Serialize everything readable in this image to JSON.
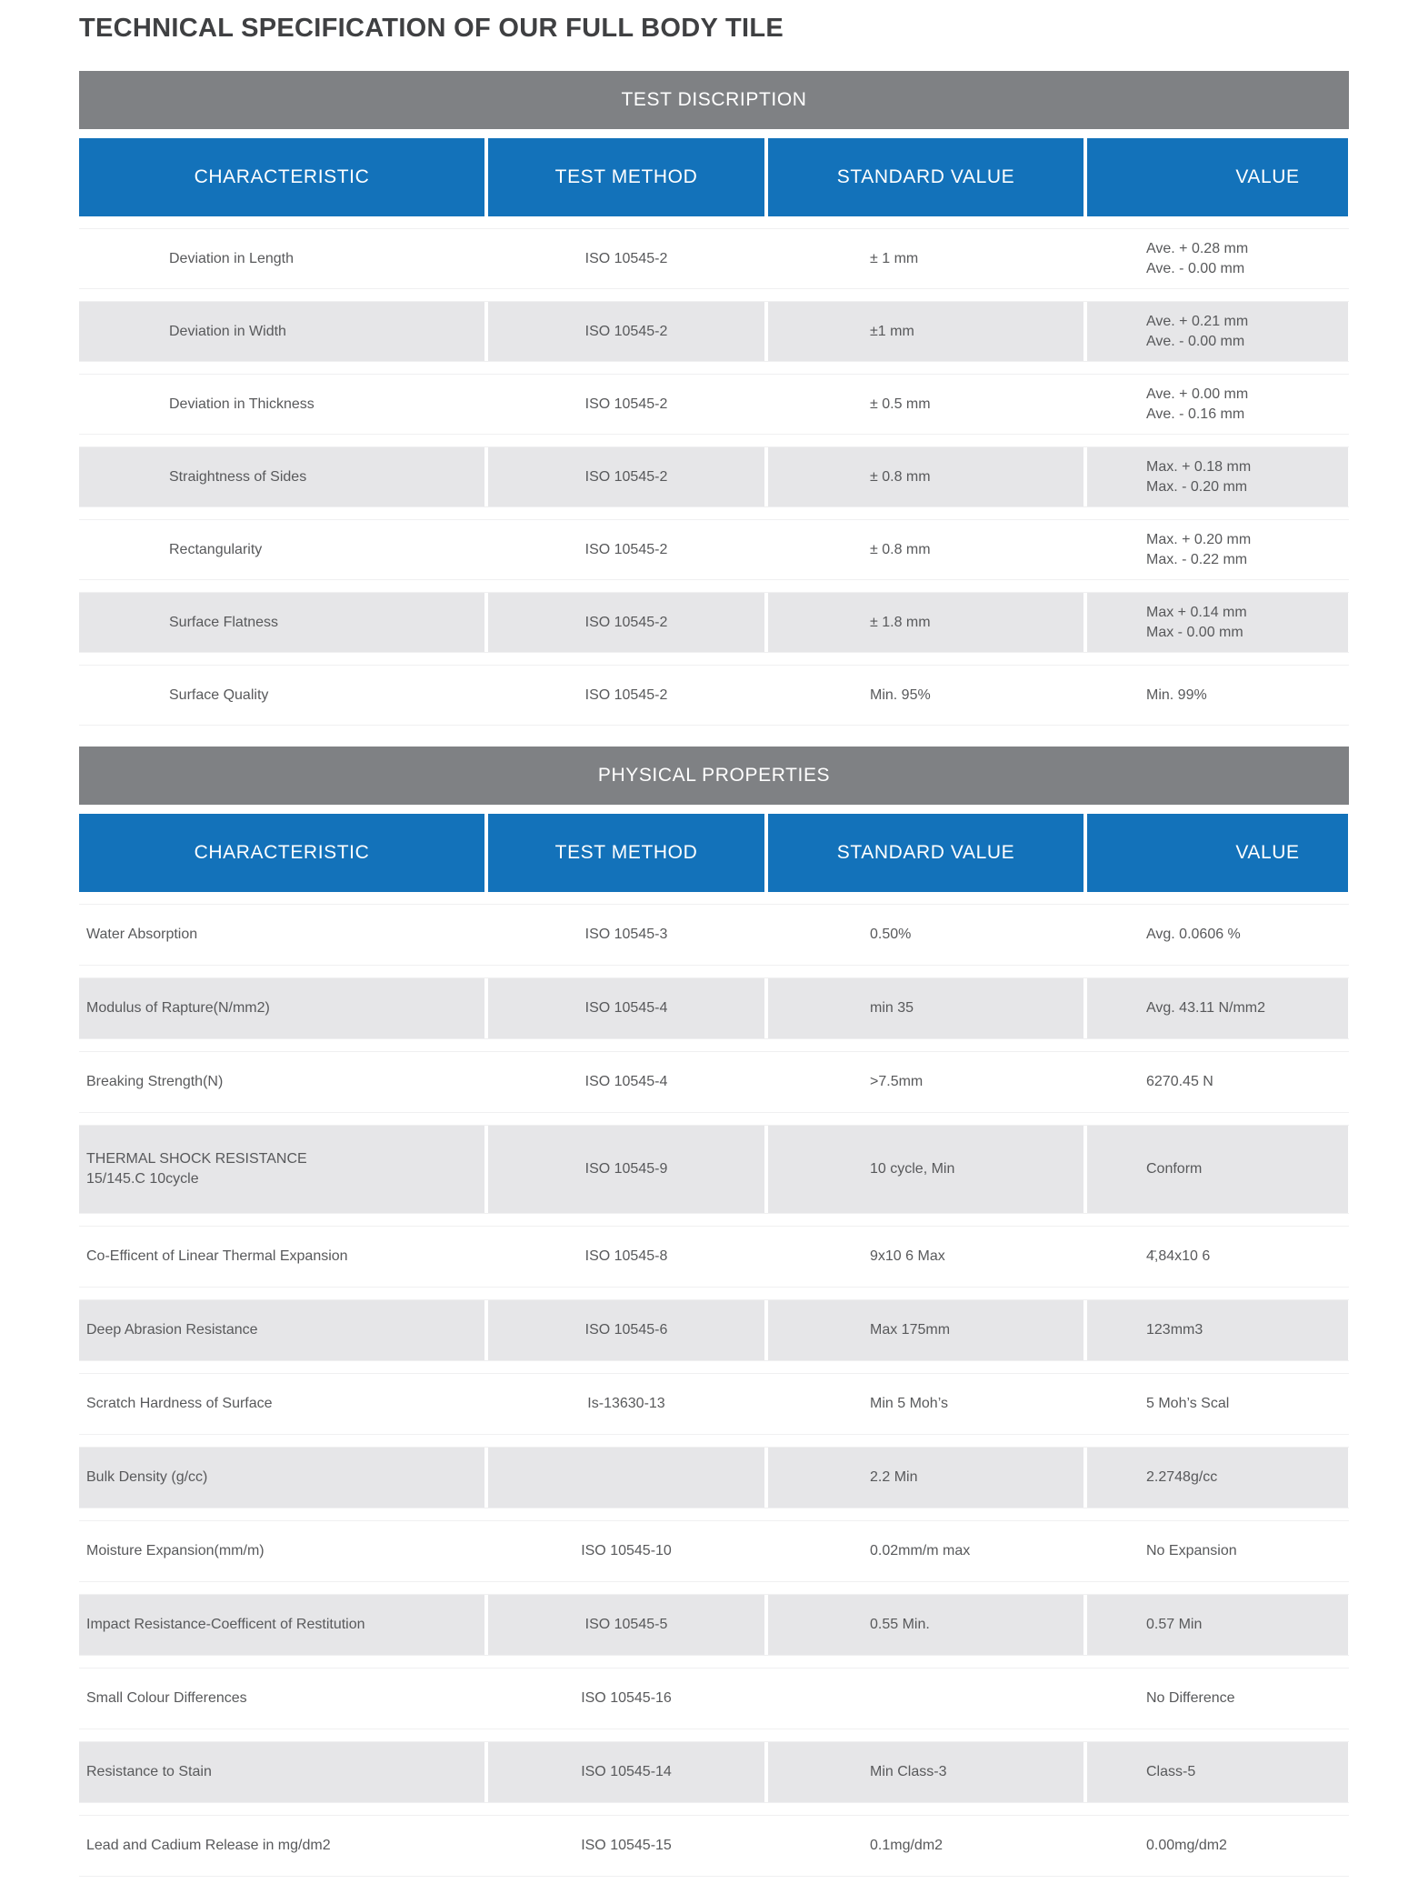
{
  "page_title": "TECHNICAL SPECIFICATION OF OUR FULL BODY TILE",
  "colors": {
    "header_blue": "#1372BA",
    "section_band_gray": "#7F8184",
    "alt_row_gray": "#E6E6E8",
    "text_gray": "#58595B"
  },
  "columns": [
    "CHARACTERISTIC",
    "TEST METHOD",
    "STANDARD VALUE",
    "VALUE"
  ],
  "tables": [
    {
      "section_title": "TEST DISCRIPTION",
      "rows": [
        {
          "characteristic": "Deviation in Length",
          "test_method": "ISO 10545-2",
          "standard_value": "± 1 mm",
          "value": "Ave. + 0.28 mm\nAve. - 0.00 mm"
        },
        {
          "characteristic": "Deviation in Width",
          "test_method": "ISO 10545-2",
          "standard_value": "±1 mm",
          "value": "Ave. + 0.21 mm\nAve. - 0.00 mm"
        },
        {
          "characteristic": "Deviation in Thickness",
          "test_method": "ISO 10545-2",
          "standard_value": "± 0.5 mm",
          "value": "Ave. + 0.00 mm\nAve. - 0.16 mm"
        },
        {
          "characteristic": "Straightness of Sides",
          "test_method": "ISO 10545-2",
          "standard_value": "± 0.8 mm",
          "value": "Max. + 0.18 mm\nMax. - 0.20 mm"
        },
        {
          "characteristic": "Rectangularity",
          "test_method": "ISO 10545-2",
          "standard_value": "± 0.8 mm",
          "value": "Max. + 0.20 mm\nMax. - 0.22 mm"
        },
        {
          "characteristic": "Surface Flatness",
          "test_method": "ISO 10545-2",
          "standard_value": "± 1.8 mm",
          "value": "Max +  0.14 mm\nMax -  0.00 mm"
        },
        {
          "characteristic": "Surface Quality",
          "test_method": "ISO 10545-2",
          "standard_value": "Min. 95%",
          "value": "Min. 99%"
        }
      ]
    },
    {
      "section_title": "PHYSICAL PROPERTIES",
      "rows": [
        {
          "characteristic": "Water Absorption",
          "test_method": "ISO 10545-3",
          "standard_value": "0.50%",
          "value": "Avg. 0.0606 %"
        },
        {
          "characteristic": "Modulus of Rapture(N/mm2)",
          "test_method": "ISO 10545-4",
          "standard_value": "min 35",
          "value": "Avg. 43.11 N/mm2"
        },
        {
          "characteristic": "Breaking Strength(N)",
          "test_method": "ISO 10545-4",
          "standard_value": ">7.5mm",
          "value": "6270.45 N"
        },
        {
          "characteristic": "THERMAL SHOCK RESISTANCE\n15/145.C 10cycle",
          "test_method": "ISO 10545-9",
          "standard_value": "10 cycle, Min",
          "value": "Conform"
        },
        {
          "characteristic": "Co-Efficent of Linear Thermal Expansion",
          "test_method": "ISO 10545-8",
          "standard_value": "9x10 6 Max",
          "value": "4̄,84x10 6"
        },
        {
          "characteristic": "Deep Abrasion Resistance",
          "test_method": "ISO 10545-6",
          "standard_value": "Max 175mm",
          "value": "123mm3"
        },
        {
          "characteristic": "Scratch Hardness of Surface",
          "test_method": "Is-13630-13",
          "standard_value": "Min 5 Moh’s",
          "value": "5 Moh’s Scal"
        },
        {
          "characteristic": "Bulk Density (g/cc)",
          "test_method": "",
          "standard_value": "2.2 Min",
          "value": "2.2748g/cc"
        },
        {
          "characteristic": "Moisture Expansion(mm/m)",
          "test_method": "ISO 10545-10",
          "standard_value": "0.02mm/m max",
          "value": "No Expansion"
        },
        {
          "characteristic": "Impact Resistance-Coefficent of Restitution",
          "test_method": "ISO 10545-5",
          "standard_value": "0.55 Min.",
          "value": "0.57 Min"
        },
        {
          "characteristic": "Small Colour Differences",
          "test_method": "ISO 10545-16",
          "standard_value": "",
          "value": "No Difference"
        },
        {
          "characteristic": "Resistance to Stain",
          "test_method": "ISO 10545-14",
          "standard_value": "Min Class-3",
          "value": "Class-5"
        },
        {
          "characteristic": "Lead and Cadium Release in mg/dm2",
          "test_method": "ISO 10545-15",
          "standard_value": "0.1mg/dm2",
          "value": "0.00mg/dm2"
        }
      ]
    }
  ]
}
